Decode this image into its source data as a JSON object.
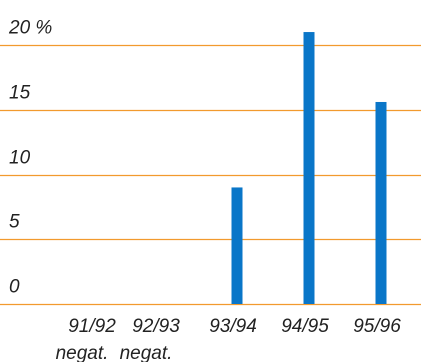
{
  "chart_data": {
    "type": "bar",
    "categories": [
      "91/92",
      "92/93",
      "93/94",
      "94/95",
      "95/96"
    ],
    "category_notes": [
      "negat.",
      "negat.",
      "",
      "",
      ""
    ],
    "values": [
      0,
      0,
      9,
      21,
      15.6
    ],
    "y_ticks": [
      {
        "value": 0,
        "label": "0"
      },
      {
        "value": 5,
        "label": "5"
      },
      {
        "value": 10,
        "label": "10"
      },
      {
        "value": 15,
        "label": "15"
      },
      {
        "value": 20,
        "label": "20 %"
      }
    ],
    "ylim": [
      0,
      20
    ],
    "grid": true,
    "title": "",
    "xlabel": "",
    "ylabel": "",
    "colors": {
      "bar": "#0a76c8",
      "grid": "#f29a2e",
      "text": "#222222"
    }
  }
}
